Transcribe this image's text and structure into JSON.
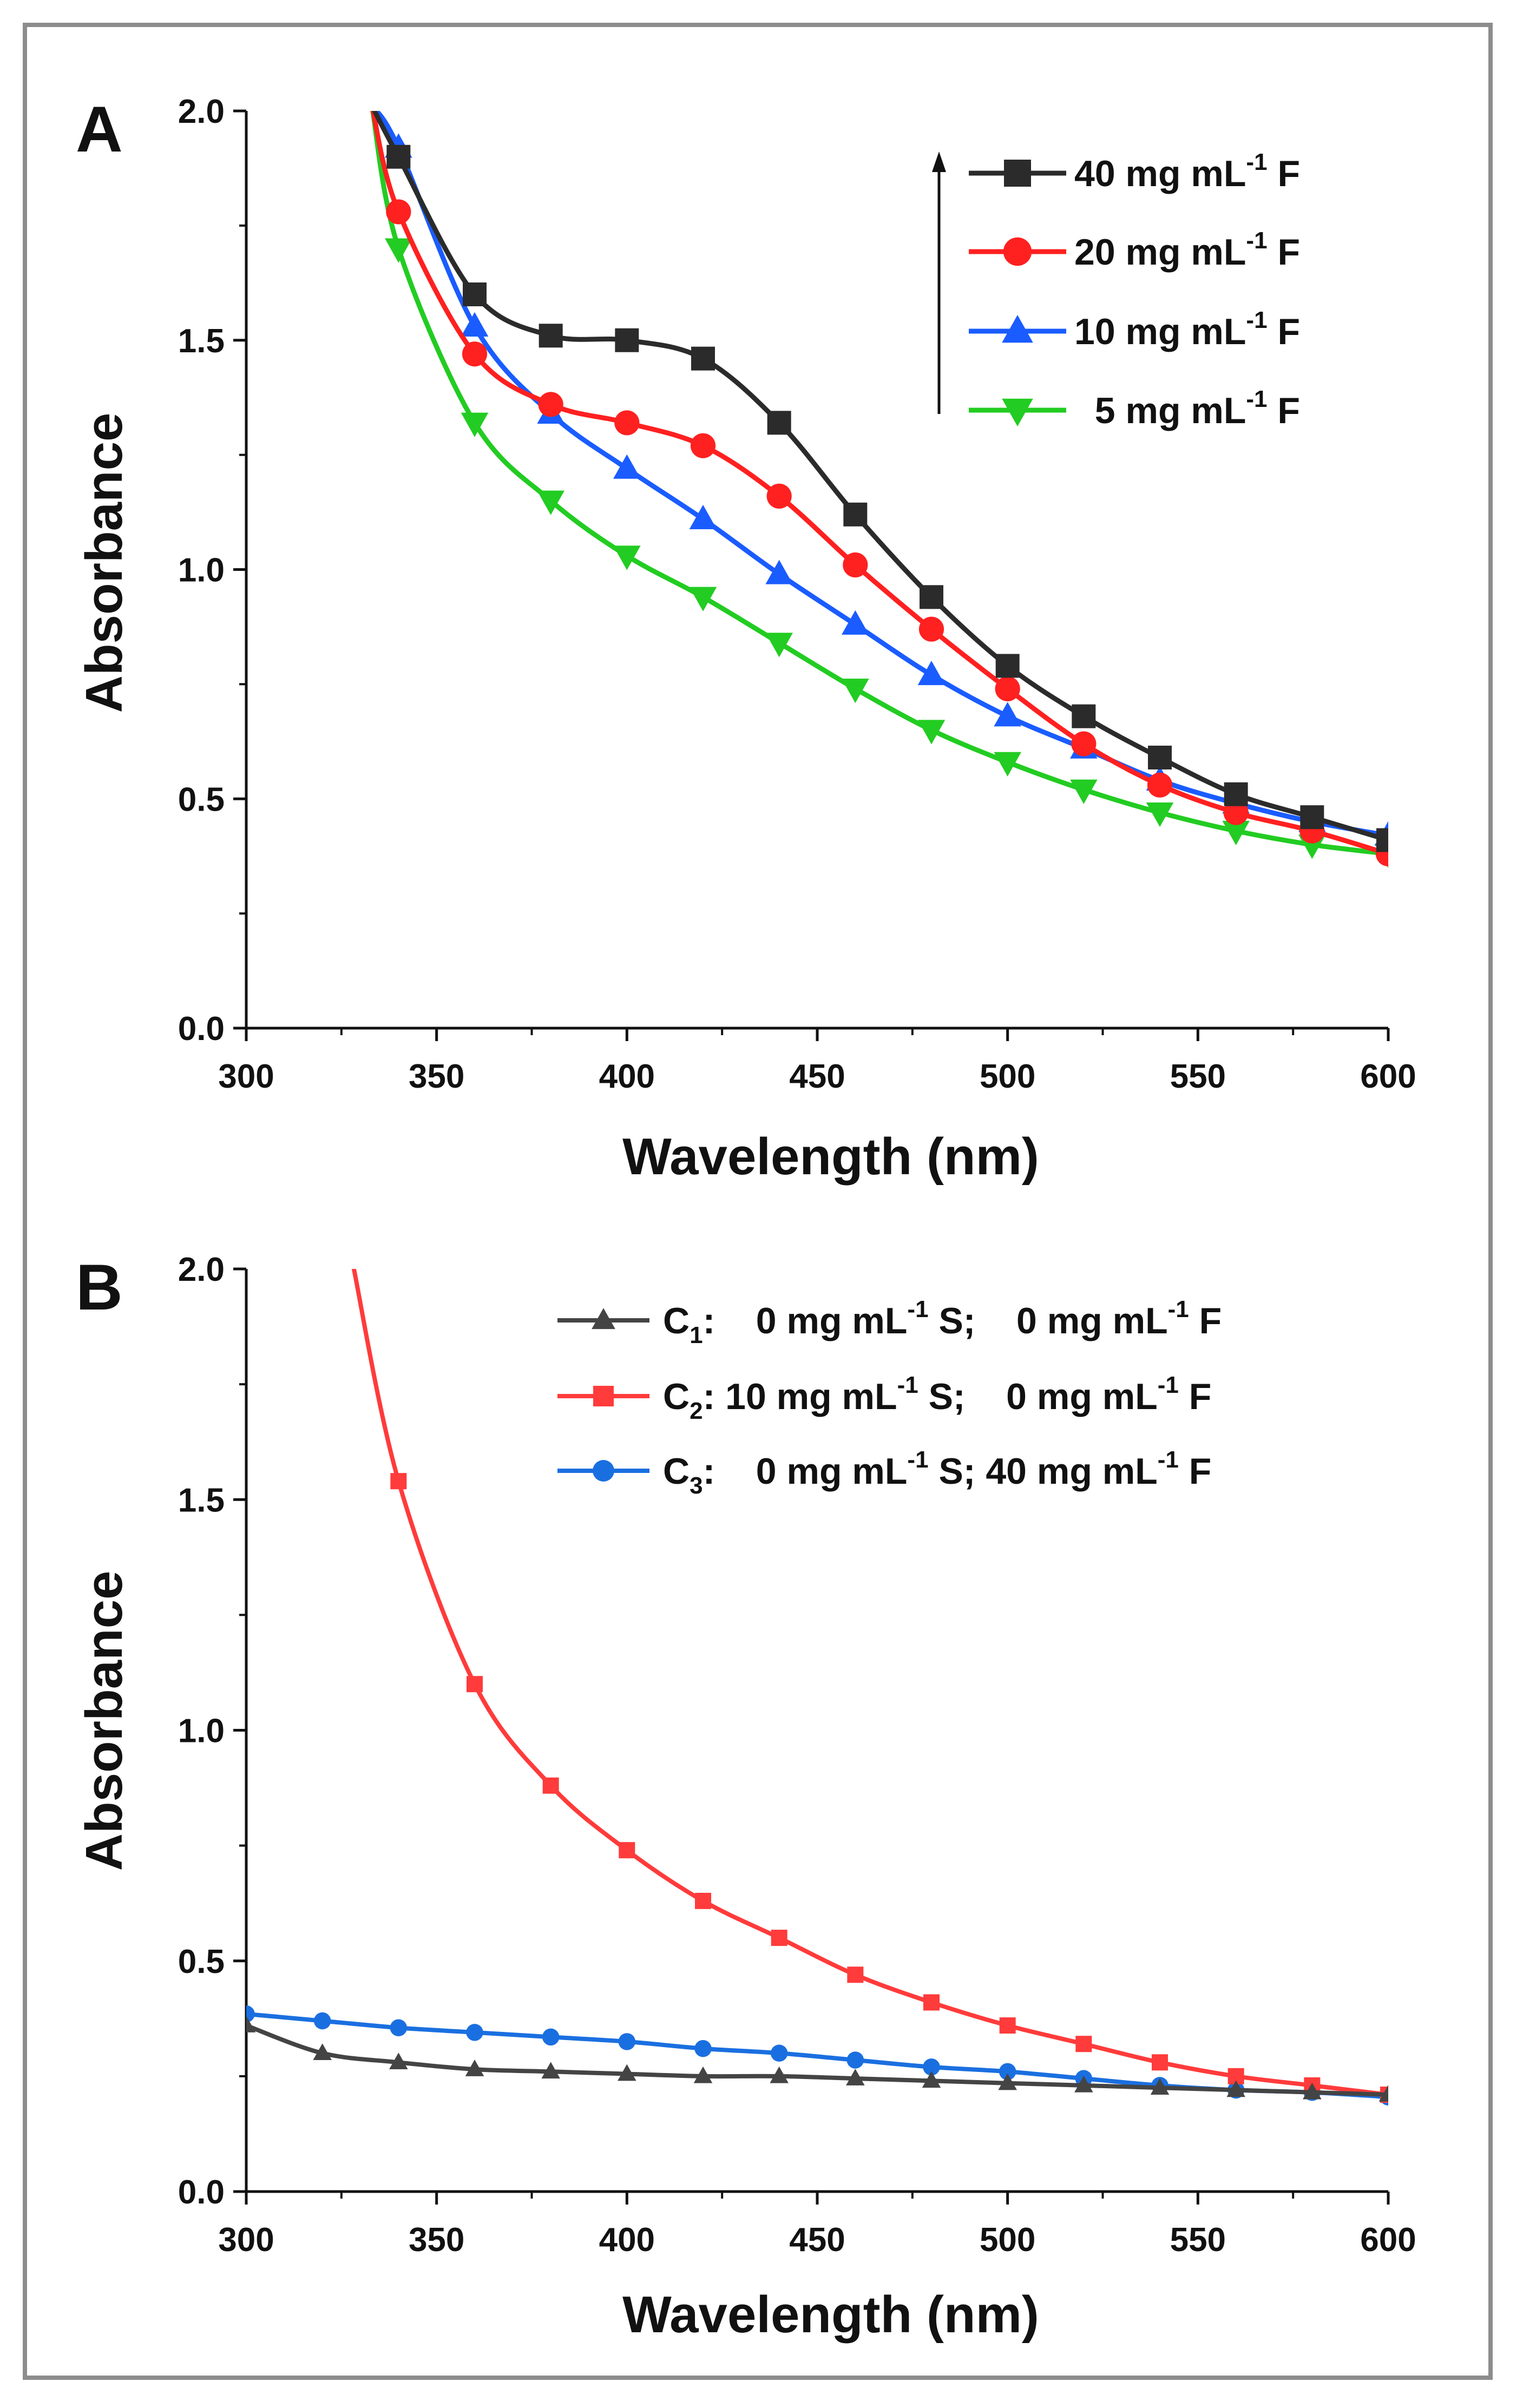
{
  "chart_data": [
    {
      "panel": "A",
      "type": "line",
      "title": "",
      "xlabel": "Wavelength (nm)",
      "ylabel": "Absorbance",
      "xlim": [
        300,
        600
      ],
      "ylim": [
        0,
        2.0
      ],
      "xticks": [
        "300",
        "350",
        "400",
        "450",
        "500",
        "550",
        "600"
      ],
      "yticks": [
        "0.0",
        "0.5",
        "1.0",
        "1.5",
        "2.0"
      ],
      "legend_position": "top-right",
      "legend_arrow": "upward arrow beside legend (increasing concentration)",
      "x": [
        340,
        360,
        380,
        400,
        420,
        440,
        460,
        480,
        500,
        520,
        540,
        560,
        580,
        600
      ],
      "series": [
        {
          "name": "40 mg mL-1 F",
          "legend": {
            "value": "40",
            "unit": "mg mL",
            "sup": "-1",
            "suffix": "F"
          },
          "color": "#2b2b2b",
          "marker": "square",
          "values": [
            1.9,
            1.6,
            1.51,
            1.5,
            1.46,
            1.32,
            1.12,
            0.94,
            0.79,
            0.68,
            0.59,
            0.51,
            0.46,
            0.41
          ]
        },
        {
          "name": "20 mg mL-1 F",
          "legend": {
            "value": "20",
            "unit": "mg mL",
            "sup": "-1",
            "suffix": "F"
          },
          "color": "#ff2020",
          "marker": "circle",
          "values": [
            1.78,
            1.47,
            1.36,
            1.32,
            1.27,
            1.16,
            1.01,
            0.87,
            0.74,
            0.62,
            0.53,
            0.47,
            0.43,
            0.38
          ]
        },
        {
          "name": "10 mg mL-1 F",
          "legend": {
            "value": "10",
            "unit": "mg mL",
            "sup": "-1",
            "suffix": "F"
          },
          "color": "#1a5cff",
          "marker": "triangle-up",
          "values": [
            1.92,
            1.53,
            1.34,
            1.22,
            1.11,
            0.99,
            0.88,
            0.77,
            0.68,
            0.61,
            0.54,
            0.49,
            0.45,
            0.42
          ]
        },
        {
          "name": "5 mg mL-1 F",
          "legend": {
            "value": "5",
            "unit": "mg mL",
            "sup": "-1",
            "suffix": "F"
          },
          "color": "#22cc22",
          "marker": "triangle-down",
          "values": [
            1.7,
            1.32,
            1.15,
            1.03,
            0.94,
            0.84,
            0.74,
            0.65,
            0.58,
            0.52,
            0.47,
            0.43,
            0.4,
            0.38
          ]
        }
      ]
    },
    {
      "panel": "B",
      "type": "line",
      "title": "",
      "xlabel": "Wavelength (nm)",
      "ylabel": "Absorbance",
      "xlim": [
        300,
        600
      ],
      "ylim": [
        0,
        2.0
      ],
      "xticks": [
        "300",
        "350",
        "400",
        "450",
        "500",
        "550",
        "600"
      ],
      "yticks": [
        "0.0",
        "0.5",
        "1.0",
        "1.5",
        "2.0"
      ],
      "legend_position": "top-right",
      "x": [
        300,
        320,
        340,
        360,
        380,
        400,
        420,
        440,
        460,
        480,
        500,
        520,
        540,
        560,
        580,
        600
      ],
      "series": [
        {
          "name": "C1: 0 mg mL-1 S; 0 mg mL-1 F",
          "legend": {
            "id": "C",
            "sub": "1",
            "s_value": "0",
            "unit": "mg mL",
            "sup": "-1",
            "s_suffix": "S;",
            "f_value": "0",
            "f_suffix": "F"
          },
          "color": "#444444",
          "marker": "triangle-up",
          "values": [
            0.36,
            0.3,
            0.28,
            0.265,
            0.26,
            0.255,
            0.25,
            0.25,
            0.245,
            0.24,
            0.235,
            0.23,
            0.225,
            0.22,
            0.215,
            0.21
          ]
        },
        {
          "name": "C2: 10 mg mL-1 S; 0 mg mL-1 F",
          "legend": {
            "id": "C",
            "sub": "2",
            "s_value": "10",
            "unit": "mg mL",
            "sup": "-1",
            "s_suffix": "S;",
            "f_value": "0",
            "f_suffix": "F"
          },
          "color": "#ff3b3b",
          "marker": "square",
          "x": [
            340,
            360,
            380,
            400,
            420,
            440,
            460,
            480,
            500,
            520,
            540,
            560,
            580,
            600
          ],
          "values": [
            1.54,
            1.1,
            0.88,
            0.74,
            0.63,
            0.55,
            0.47,
            0.41,
            0.36,
            0.32,
            0.28,
            0.25,
            0.23,
            0.21
          ],
          "line_start": {
            "x": 328,
            "y": 2.0
          }
        },
        {
          "name": "C3: 0 mg mL-1 S; 40 mg mL-1 F",
          "legend": {
            "id": "C",
            "sub": "3",
            "s_value": "0",
            "unit": "mg mL",
            "sup": "-1",
            "s_suffix": "S;",
            "f_value": "40",
            "f_suffix": "F"
          },
          "color": "#1a6fe0",
          "marker": "circle",
          "values": [
            0.385,
            0.37,
            0.355,
            0.345,
            0.335,
            0.325,
            0.31,
            0.3,
            0.285,
            0.27,
            0.26,
            0.245,
            0.23,
            0.22,
            0.215,
            0.205
          ]
        }
      ]
    }
  ]
}
